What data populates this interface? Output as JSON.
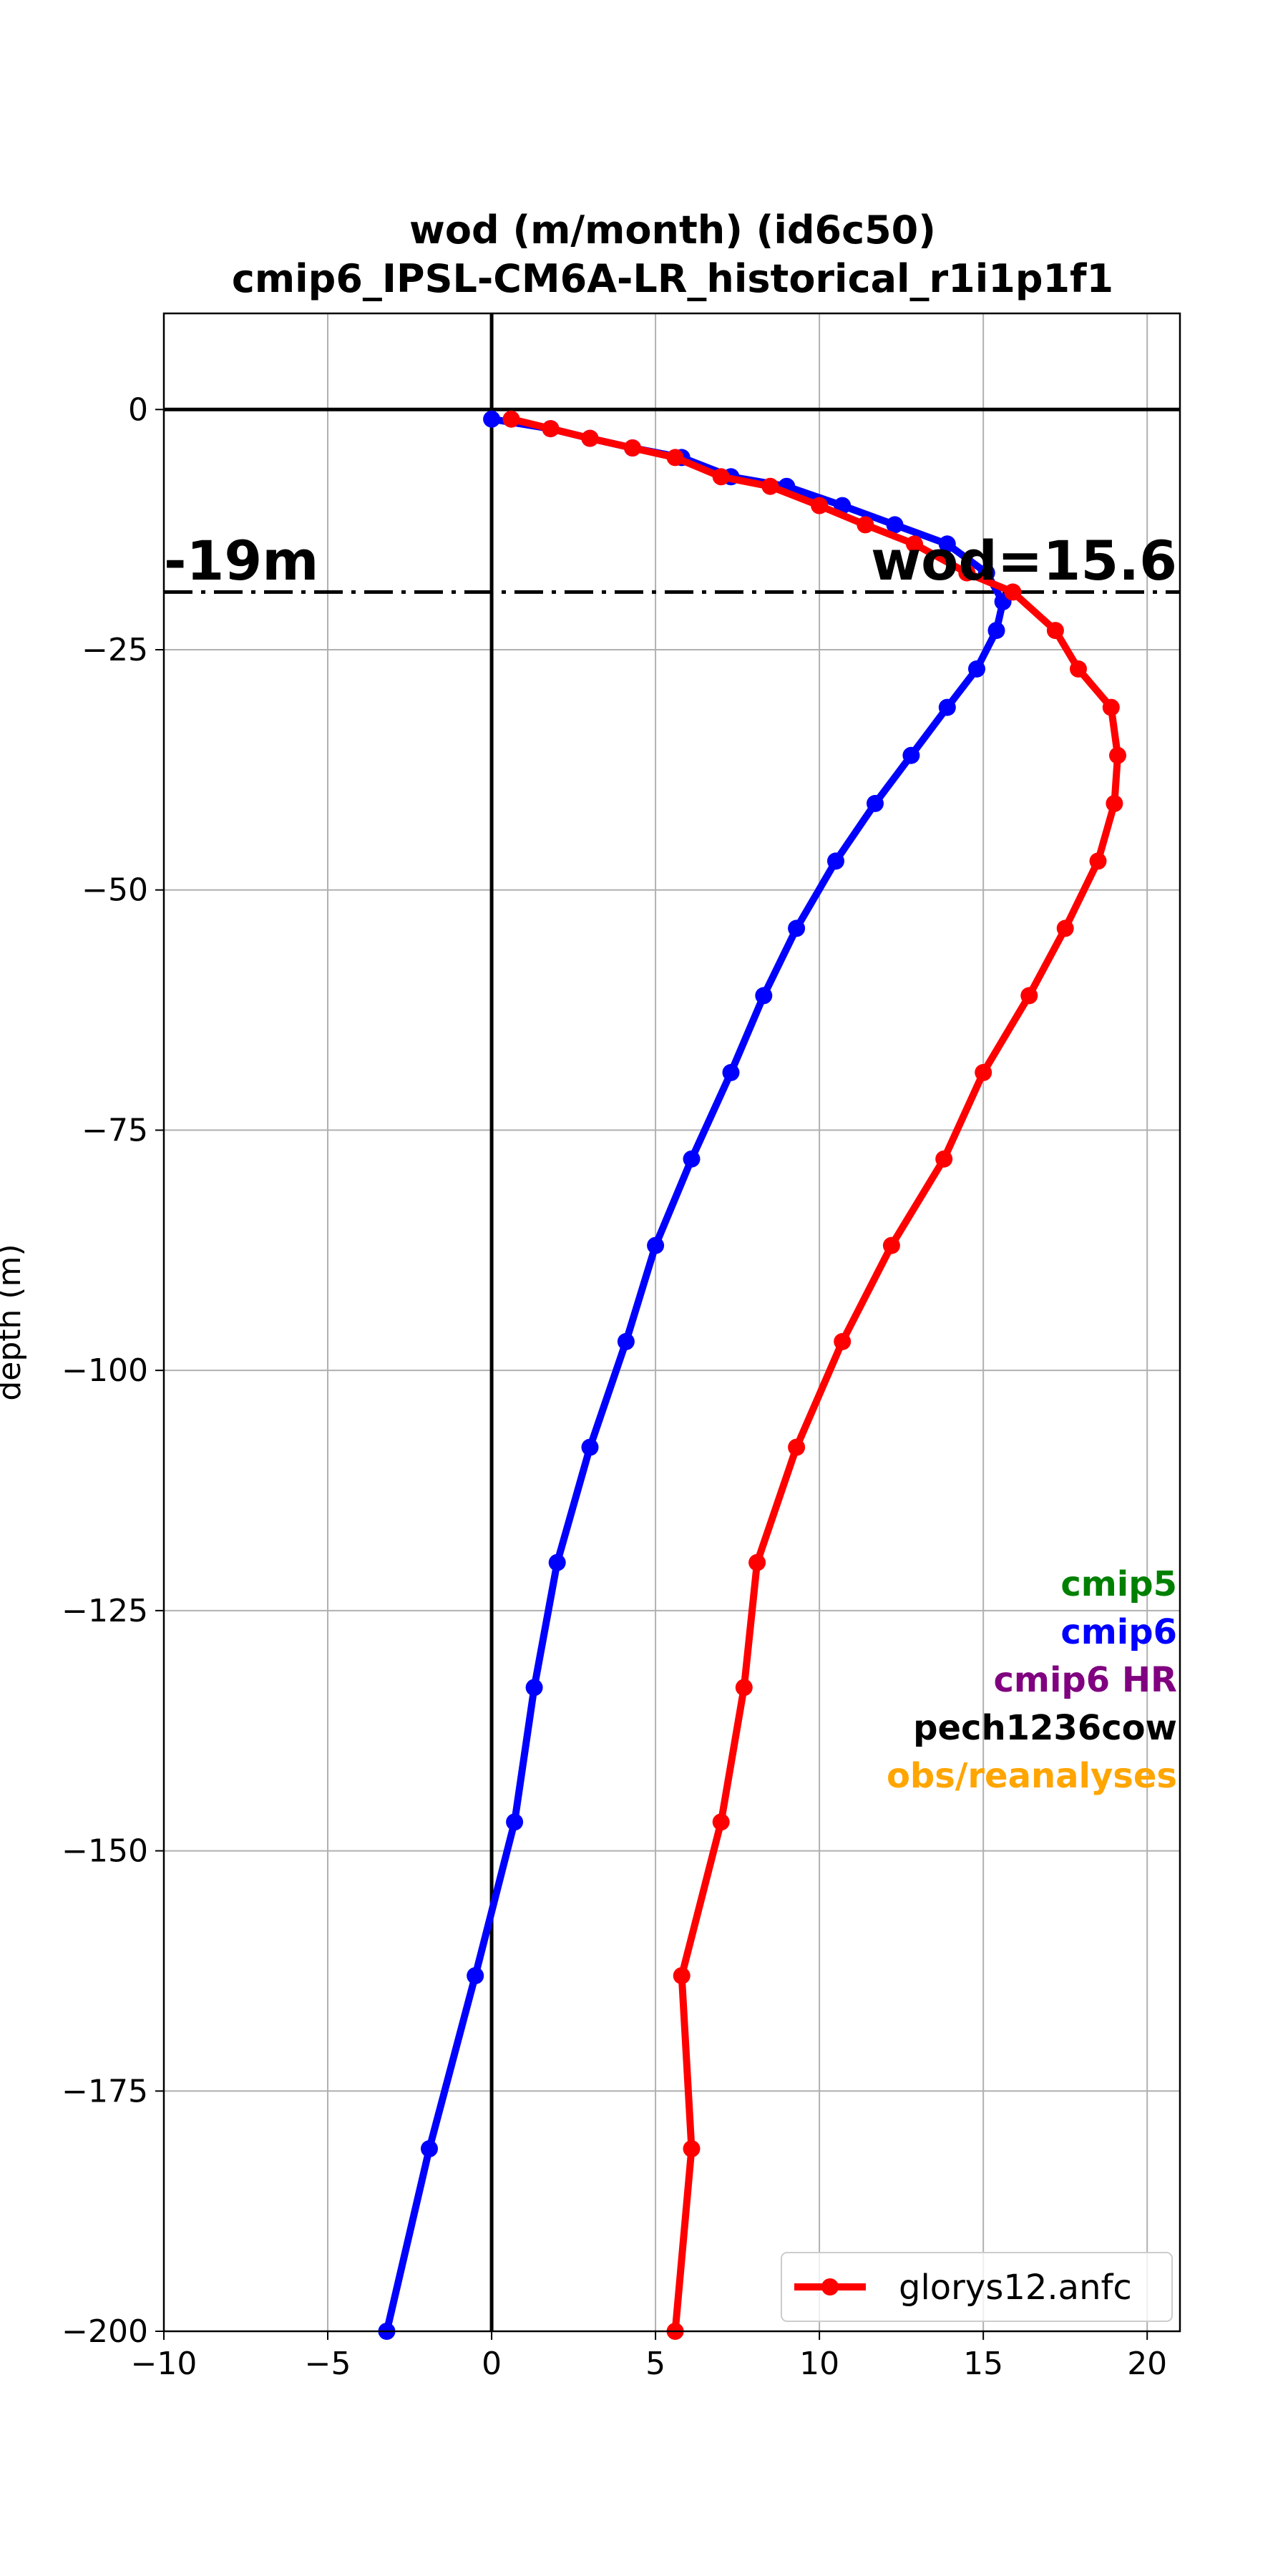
{
  "chart_data": {
    "type": "line",
    "title": "wod (m/month)    (id6c50)",
    "subtitle": "cmip6_IPSL-CM6A-LR_historical_r1i1p1f1",
    "xlabel": "",
    "ylabel": "depth (m)",
    "xlim": [
      -10,
      21
    ],
    "ylim": [
      -200,
      10
    ],
    "xticks": [
      "−10",
      "−5",
      "0",
      "5",
      "10",
      "15",
      "20"
    ],
    "xtick_values": [
      -10,
      -5,
      0,
      5,
      10,
      15,
      20
    ],
    "yticks": [
      "−200",
      "−175",
      "−150",
      "−125",
      "−100",
      "−75",
      "−50",
      "−25",
      "0"
    ],
    "ytick_values": [
      -200,
      -175,
      -150,
      -125,
      -100,
      -75,
      -50,
      -25,
      0
    ],
    "grid": true,
    "hline_depth": -19,
    "annotation_left": "-19m",
    "annotation_right": "wod=15.6",
    "side_labels": [
      {
        "text": "cmip5",
        "color": "#008000"
      },
      {
        "text": "cmip6",
        "color": "#0000ff"
      },
      {
        "text": "cmip6 HR",
        "color": "#800080"
      },
      {
        "text": "pech1236cow",
        "color": "#000000"
      },
      {
        "text": "obs/reanalyses",
        "color": "#ffa500"
      }
    ],
    "legend_position": "lower right",
    "series": [
      {
        "name": "",
        "color": "#0000ff",
        "points": [
          {
            "x": 0.0,
            "y": -1
          },
          {
            "x": 1.8,
            "y": -2
          },
          {
            "x": 3.0,
            "y": -3
          },
          {
            "x": 4.3,
            "y": -4
          },
          {
            "x": 5.8,
            "y": -5
          },
          {
            "x": 7.3,
            "y": -7
          },
          {
            "x": 9.0,
            "y": -8
          },
          {
            "x": 10.7,
            "y": -10
          },
          {
            "x": 12.3,
            "y": -12
          },
          {
            "x": 13.9,
            "y": -14
          },
          {
            "x": 15.1,
            "y": -17
          },
          {
            "x": 15.6,
            "y": -20
          },
          {
            "x": 15.4,
            "y": -23
          },
          {
            "x": 14.8,
            "y": -27
          },
          {
            "x": 13.9,
            "y": -31
          },
          {
            "x": 12.8,
            "y": -36
          },
          {
            "x": 11.7,
            "y": -41
          },
          {
            "x": 10.5,
            "y": -47
          },
          {
            "x": 9.3,
            "y": -54
          },
          {
            "x": 8.3,
            "y": -61
          },
          {
            "x": 7.3,
            "y": -69
          },
          {
            "x": 6.1,
            "y": -78
          },
          {
            "x": 5.0,
            "y": -87
          },
          {
            "x": 4.1,
            "y": -97
          },
          {
            "x": 3.0,
            "y": -108
          },
          {
            "x": 2.0,
            "y": -120
          },
          {
            "x": 1.3,
            "y": -133
          },
          {
            "x": 0.7,
            "y": -147
          },
          {
            "x": -0.5,
            "y": -163
          },
          {
            "x": -1.9,
            "y": -181
          },
          {
            "x": -3.2,
            "y": -200
          }
        ]
      },
      {
        "name": "glorys12.anfc",
        "color": "#ff0000",
        "points": [
          {
            "x": 0.6,
            "y": -1
          },
          {
            "x": 1.8,
            "y": -2
          },
          {
            "x": 3.0,
            "y": -3
          },
          {
            "x": 4.3,
            "y": -4
          },
          {
            "x": 5.6,
            "y": -5
          },
          {
            "x": 7.0,
            "y": -7
          },
          {
            "x": 8.5,
            "y": -8
          },
          {
            "x": 10.0,
            "y": -10
          },
          {
            "x": 11.4,
            "y": -12
          },
          {
            "x": 12.9,
            "y": -14
          },
          {
            "x": 14.5,
            "y": -17
          },
          {
            "x": 15.9,
            "y": -19
          },
          {
            "x": 17.2,
            "y": -23
          },
          {
            "x": 17.9,
            "y": -27
          },
          {
            "x": 18.9,
            "y": -31
          },
          {
            "x": 19.1,
            "y": -36
          },
          {
            "x": 19.0,
            "y": -41
          },
          {
            "x": 18.5,
            "y": -47
          },
          {
            "x": 17.5,
            "y": -54
          },
          {
            "x": 16.4,
            "y": -61
          },
          {
            "x": 15.0,
            "y": -69
          },
          {
            "x": 13.8,
            "y": -78
          },
          {
            "x": 12.2,
            "y": -87
          },
          {
            "x": 10.7,
            "y": -97
          },
          {
            "x": 9.3,
            "y": -108
          },
          {
            "x": 8.1,
            "y": -120
          },
          {
            "x": 7.7,
            "y": -133
          },
          {
            "x": 7.0,
            "y": -147
          },
          {
            "x": 5.8,
            "y": -163
          },
          {
            "x": 6.1,
            "y": -181
          },
          {
            "x": 5.6,
            "y": -200
          }
        ]
      }
    ]
  }
}
